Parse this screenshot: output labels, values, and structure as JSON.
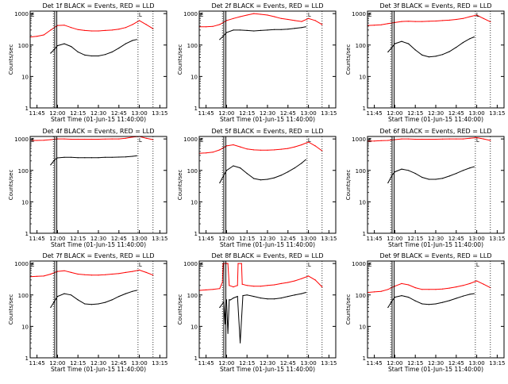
{
  "colors": {
    "events": "#000000",
    "lld": "#ff0000",
    "frame": "#000000"
  },
  "common": {
    "xlabel": "Start Time (01-Jun-15 11:40:00)",
    "ylabel": "Counts/sec",
    "x_ticks": [
      "11:45",
      "12:00",
      "12:15",
      "12:30",
      "12:45",
      "13:00",
      "13:15"
    ],
    "x_tick_minutes": [
      5,
      20,
      35,
      50,
      65,
      80,
      95
    ],
    "y_ticks": [
      "1",
      "10",
      "100",
      "1000"
    ],
    "y_tick_values": [
      1,
      10,
      100,
      1000
    ],
    "xlim_minutes": [
      0,
      100
    ],
    "ylim": [
      1,
      1200
    ],
    "y_scale": "log",
    "marker_E": "E",
    "marker_L": "L"
  },
  "chart_data": [
    {
      "type": "line",
      "title": "Det 1f BLACK = Events, RED = LLD",
      "solid_vlines": [
        18,
        19.5
      ],
      "dotted_vlines": [
        17,
        79,
        90
      ],
      "series": [
        {
          "name": "RED = LLD",
          "x": [
            0,
            5,
            10,
            15,
            20,
            25,
            30,
            35,
            40,
            45,
            50,
            55,
            60,
            65,
            70,
            75,
            80,
            85,
            90
          ],
          "y": [
            180,
            190,
            210,
            300,
            420,
            430,
            360,
            310,
            290,
            280,
            280,
            290,
            300,
            320,
            360,
            450,
            600,
            450,
            330
          ]
        },
        {
          "name": "BLACK = Events",
          "x": [
            15,
            18,
            20,
            25,
            30,
            35,
            40,
            45,
            50,
            55,
            60,
            65,
            70,
            75,
            78
          ],
          "y": [
            55,
            75,
            95,
            110,
            90,
            60,
            48,
            45,
            45,
            50,
            60,
            80,
            110,
            140,
            150
          ]
        }
      ]
    },
    {
      "type": "line",
      "title": "Det 2f BLACK = Events, RED = LLD",
      "solid_vlines": [
        18,
        19.5
      ],
      "dotted_vlines": [
        17,
        79,
        90
      ],
      "series": [
        {
          "name": "RED = LLD",
          "x": [
            0,
            5,
            10,
            15,
            20,
            25,
            30,
            35,
            40,
            45,
            50,
            55,
            60,
            65,
            70,
            75,
            80,
            85,
            90
          ],
          "y": [
            380,
            380,
            390,
            450,
            600,
            700,
            800,
            900,
            1000,
            950,
            900,
            800,
            700,
            650,
            600,
            560,
            700,
            600,
            450
          ]
        },
        {
          "name": "BLACK = Events",
          "x": [
            15,
            18,
            20,
            25,
            30,
            35,
            40,
            45,
            50,
            55,
            60,
            65,
            70,
            75,
            78
          ],
          "y": [
            150,
            200,
            250,
            300,
            300,
            290,
            280,
            290,
            300,
            310,
            310,
            320,
            340,
            360,
            380
          ]
        }
      ]
    },
    {
      "type": "line",
      "title": "Det 3f BLACK = Events, RED = LLD",
      "solid_vlines": [
        18,
        19.5
      ],
      "dotted_vlines": [
        17,
        79,
        90
      ],
      "series": [
        {
          "name": "RED = LLD",
          "x": [
            0,
            5,
            10,
            15,
            20,
            25,
            30,
            35,
            40,
            45,
            50,
            55,
            60,
            65,
            70,
            75,
            80,
            85,
            90
          ],
          "y": [
            420,
            430,
            440,
            480,
            520,
            560,
            570,
            560,
            560,
            570,
            580,
            600,
            620,
            650,
            700,
            800,
            900,
            700,
            550
          ]
        },
        {
          "name": "BLACK = Events",
          "x": [
            15,
            18,
            20,
            25,
            30,
            35,
            40,
            45,
            50,
            55,
            60,
            65,
            70,
            75,
            78
          ],
          "y": [
            60,
            85,
            110,
            130,
            110,
            70,
            48,
            42,
            44,
            50,
            62,
            85,
            120,
            160,
            180
          ]
        }
      ]
    },
    {
      "type": "line",
      "title": "Det 4f BLACK = Events, RED = LLD",
      "solid_vlines": [
        18,
        19.5
      ],
      "dotted_vlines": [
        17,
        79,
        90
      ],
      "series": [
        {
          "name": "RED = LLD",
          "x": [
            0,
            5,
            10,
            15,
            20,
            25,
            30,
            35,
            40,
            45,
            50,
            55,
            60,
            65,
            70,
            75,
            80,
            85,
            90
          ],
          "y": [
            900,
            900,
            910,
            950,
            1000,
            1000,
            980,
            980,
            980,
            980,
            980,
            990,
            1000,
            1000,
            1050,
            1150,
            1200,
            1050,
            950
          ]
        },
        {
          "name": "BLACK = Events",
          "x": [
            15,
            18,
            20,
            25,
            30,
            35,
            40,
            45,
            50,
            55,
            60,
            65,
            70,
            75,
            78
          ],
          "y": [
            150,
            220,
            250,
            260,
            260,
            255,
            255,
            255,
            255,
            260,
            260,
            265,
            270,
            280,
            290
          ]
        }
      ]
    },
    {
      "type": "line",
      "title": "Det 5f BLACK = Events, RED = LLD",
      "solid_vlines": [
        18,
        19.5
      ],
      "dotted_vlines": [
        17,
        79,
        90
      ],
      "series": [
        {
          "name": "RED = LLD",
          "x": [
            0,
            5,
            10,
            15,
            20,
            25,
            30,
            35,
            40,
            45,
            50,
            55,
            60,
            65,
            70,
            75,
            80,
            85,
            90
          ],
          "y": [
            350,
            360,
            380,
            450,
            600,
            650,
            560,
            480,
            450,
            440,
            440,
            450,
            470,
            500,
            560,
            650,
            800,
            600,
            420
          ]
        },
        {
          "name": "BLACK = Events",
          "x": [
            15,
            18,
            20,
            25,
            30,
            35,
            40,
            45,
            50,
            55,
            60,
            65,
            70,
            75,
            78
          ],
          "y": [
            40,
            70,
            100,
            140,
            120,
            80,
            55,
            50,
            52,
            58,
            70,
            90,
            120,
            170,
            220
          ]
        }
      ]
    },
    {
      "type": "line",
      "title": "Det 6f BLACK = Events, RED = LLD",
      "solid_vlines": [
        18,
        19.5
      ],
      "dotted_vlines": [
        17,
        79,
        90
      ],
      "series": [
        {
          "name": "RED = LLD",
          "x": [
            0,
            5,
            10,
            15,
            20,
            25,
            30,
            35,
            40,
            45,
            50,
            55,
            60,
            65,
            70,
            75,
            80,
            85,
            90
          ],
          "y": [
            850,
            860,
            880,
            900,
            950,
            1000,
            1000,
            980,
            980,
            980,
            980,
            990,
            1000,
            1000,
            1000,
            1050,
            1100,
            1000,
            900
          ]
        },
        {
          "name": "BLACK = Events",
          "x": [
            15,
            18,
            20,
            25,
            30,
            35,
            40,
            45,
            50,
            55,
            60,
            65,
            70,
            75,
            78
          ],
          "y": [
            40,
            70,
            90,
            110,
            100,
            80,
            60,
            52,
            52,
            56,
            66,
            80,
            100,
            120,
            130
          ]
        }
      ]
    },
    {
      "type": "line",
      "title": "Det 7f BLACK = Events, RED = LLD",
      "solid_vlines": [
        18,
        19.5
      ],
      "dotted_vlines": [
        17,
        79,
        90
      ],
      "series": [
        {
          "name": "RED = LLD",
          "x": [
            0,
            5,
            10,
            15,
            20,
            25,
            30,
            35,
            40,
            45,
            50,
            55,
            60,
            65,
            70,
            75,
            80,
            85,
            90
          ],
          "y": [
            380,
            390,
            400,
            460,
            560,
            590,
            520,
            460,
            440,
            430,
            430,
            440,
            460,
            480,
            520,
            560,
            620,
            520,
            430
          ]
        },
        {
          "name": "BLACK = Events",
          "x": [
            15,
            18,
            20,
            25,
            30,
            35,
            40,
            45,
            50,
            55,
            60,
            65,
            70,
            75,
            78
          ],
          "y": [
            40,
            65,
            90,
            110,
            100,
            70,
            52,
            50,
            52,
            58,
            70,
            90,
            110,
            130,
            140
          ]
        }
      ]
    },
    {
      "type": "line",
      "title": "Det 8f BLACK = Events, RED = LLD",
      "solid_vlines": [
        18,
        19.5
      ],
      "dotted_vlines": [
        17,
        79,
        90
      ],
      "series": [
        {
          "name": "RED = LLD",
          "x": [
            0,
            5,
            10,
            15,
            17,
            17.5,
            20,
            21,
            22,
            25,
            28,
            28.5,
            31,
            31.5,
            35,
            40,
            45,
            50,
            55,
            60,
            65,
            70,
            75,
            80,
            85,
            90
          ],
          "y": [
            140,
            145,
            150,
            160,
            250,
            1000,
            1000,
            1000,
            200,
            180,
            200,
            1000,
            1000,
            220,
            200,
            190,
            190,
            200,
            210,
            230,
            250,
            280,
            330,
            400,
            300,
            180
          ]
        },
        {
          "name": "BLACK = Events",
          "x": [
            15,
            18,
            19,
            19.5,
            20,
            21,
            22,
            23,
            25,
            28,
            30,
            32,
            35,
            40,
            45,
            50,
            55,
            60,
            65,
            70,
            75,
            78
          ],
          "y": [
            40,
            60,
            12,
            60,
            70,
            6,
            70,
            70,
            80,
            90,
            3,
            95,
            100,
            90,
            80,
            75,
            75,
            80,
            90,
            100,
            110,
            120
          ]
        }
      ]
    },
    {
      "type": "line",
      "title": "Det 9f BLACK = Events, RED = LLD",
      "solid_vlines": [
        18,
        19.5
      ],
      "dotted_vlines": [
        17,
        79,
        90
      ],
      "series": [
        {
          "name": "RED = LLD",
          "x": [
            0,
            5,
            10,
            15,
            20,
            25,
            30,
            35,
            40,
            45,
            50,
            55,
            60,
            65,
            70,
            75,
            80,
            85,
            90
          ],
          "y": [
            120,
            125,
            130,
            150,
            190,
            230,
            210,
            170,
            150,
            150,
            150,
            155,
            165,
            180,
            200,
            230,
            280,
            220,
            170
          ]
        },
        {
          "name": "BLACK = Events",
          "x": [
            15,
            18,
            20,
            25,
            30,
            35,
            40,
            45,
            50,
            55,
            60,
            65,
            70,
            75,
            78
          ],
          "y": [
            40,
            65,
            85,
            95,
            85,
            65,
            52,
            50,
            52,
            58,
            66,
            78,
            92,
            105,
            110
          ]
        }
      ]
    }
  ]
}
